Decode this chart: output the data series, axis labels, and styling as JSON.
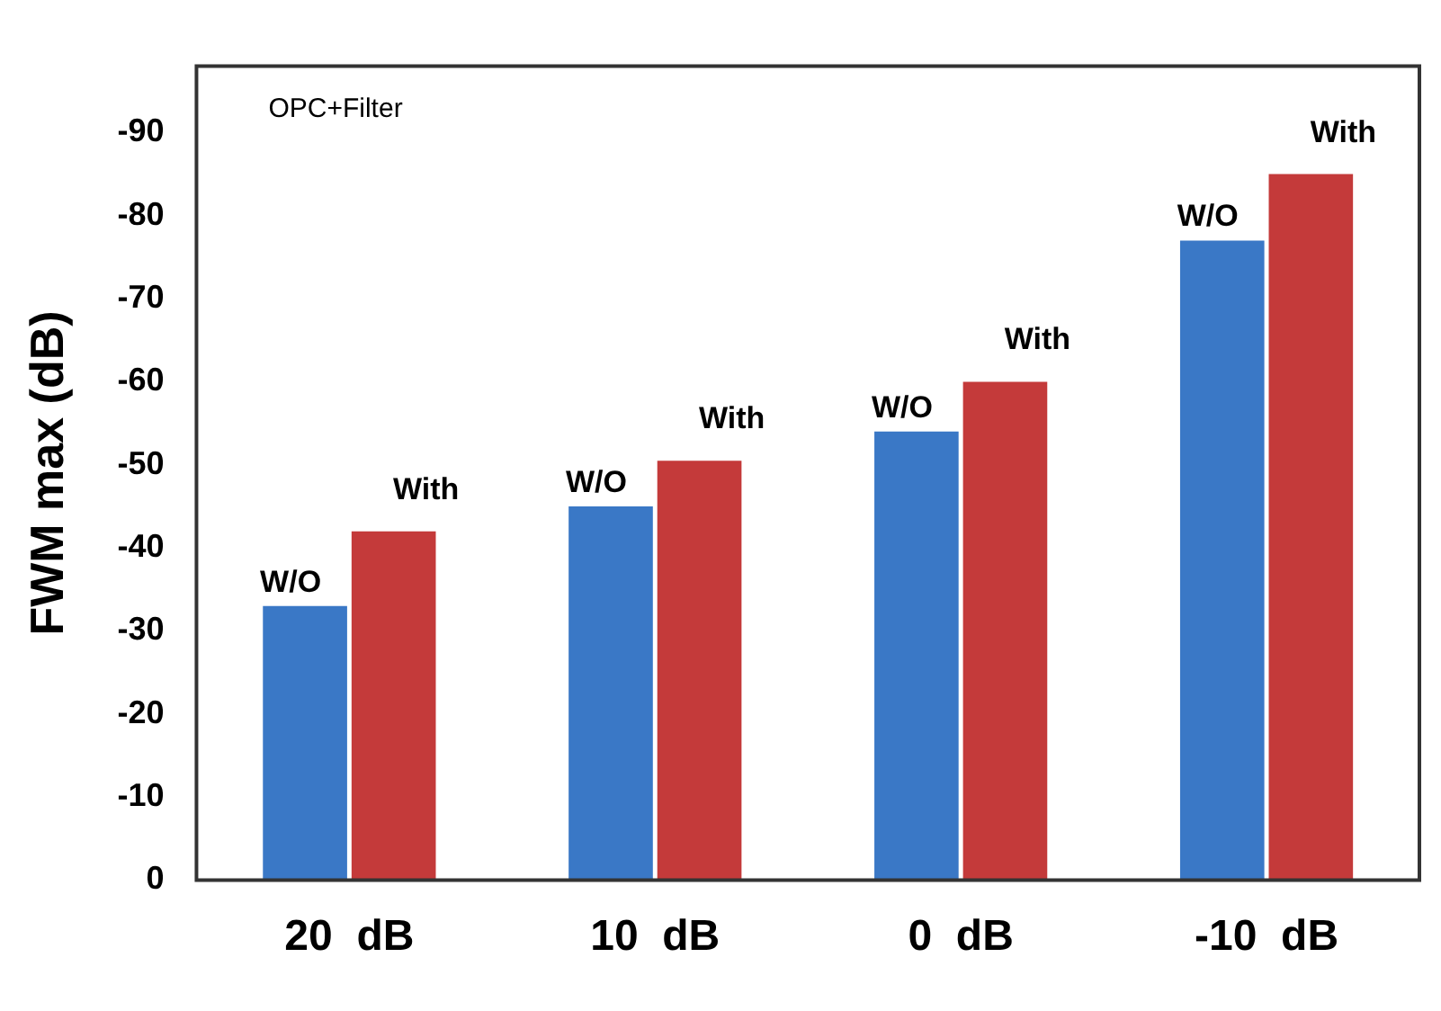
{
  "chart_data": {
    "type": "bar",
    "ylabel": "FWM max (dB)",
    "annotations": [
      "OPC+Filter"
    ],
    "categories": [
      "20  dB",
      "10  dB",
      "0  dB",
      "-10  dB"
    ],
    "series": [
      {
        "name": "W/O",
        "color": "#3a78c6",
        "values": [
          -33,
          -45,
          -54,
          -77
        ]
      },
      {
        "name": "With",
        "color": "#c43a3a",
        "values": [
          -42,
          -50.5,
          -60,
          -85
        ]
      }
    ],
    "ylim": [
      0,
      -98
    ],
    "yticks": [
      0,
      -10,
      -20,
      -30,
      -40,
      -50,
      -60,
      -70,
      -80,
      -90
    ],
    "grid": false,
    "legend": false
  }
}
